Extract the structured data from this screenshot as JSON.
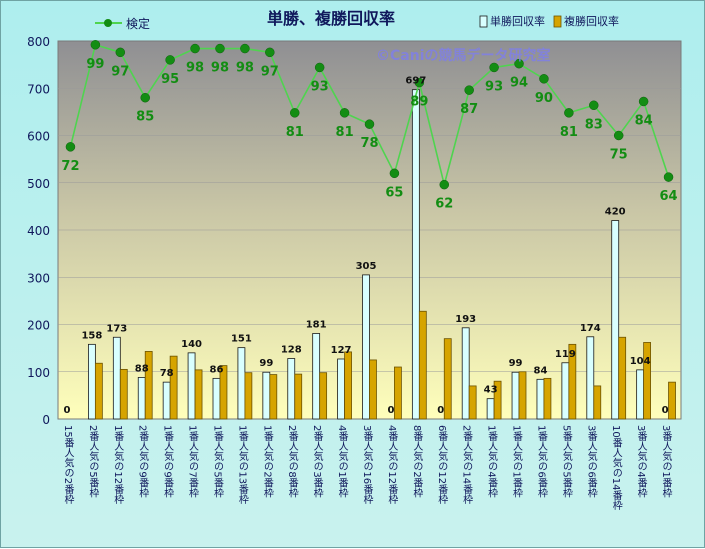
{
  "chart_data": {
    "type": "bar",
    "title": "単勝、複勝回収率",
    "watermark": "©Caniの競馬データ研究室",
    "legend": {
      "line_label": "検定",
      "bar1_label": "単勝回収率",
      "bar2_label": "複勝回収率"
    },
    "ylim": [
      0,
      800
    ],
    "yticks": [
      "0",
      "100",
      "200",
      "300",
      "400",
      "500",
      "600",
      "700",
      "800"
    ],
    "categories": [
      "15番人気の2番枠",
      "2番人気の5番枠",
      "1番人気の12番枠",
      "2番人気の9番枠",
      "1番人気の9番枠",
      "1番人気の7番枠",
      "1番人気の5番枠",
      "1番人気の13番枠",
      "1番人気の2番枠",
      "2番人気の8番枠",
      "2番人気の3番枠",
      "4番人気の1番枠",
      "3番人気の16番枠",
      "4番人気の12番枠",
      "8番人気の2番枠",
      "6番人気の12番枠",
      "2番人気の14番枠",
      "1番人気の4番枠",
      "1番人気の1番枠",
      "1番人気の6番枠",
      "5番人気の5番枠",
      "3番人気の6番枠",
      "10番人気の14番枠",
      "3番人気の4番枠",
      "3番人気の1番枠"
    ],
    "series": [
      {
        "name": "単勝回収率",
        "type": "bar",
        "values": [
          0,
          158,
          173,
          88,
          78,
          140,
          86,
          151,
          99,
          128,
          181,
          127,
          305,
          0,
          697,
          0,
          193,
          43,
          99,
          84,
          119,
          174,
          420,
          104,
          0
        ]
      },
      {
        "name": "複勝回収率",
        "type": "bar",
        "values": [
          0,
          118,
          105,
          143,
          133,
          104,
          113,
          98,
          94,
          95,
          98,
          142,
          125,
          110,
          228,
          170,
          70,
          80,
          100,
          86,
          158,
          70,
          173,
          162,
          78
        ]
      },
      {
        "name": "検定",
        "type": "line",
        "values": [
          72,
          99,
          97,
          85,
          95,
          98,
          98,
          98,
          97,
          81,
          93,
          81,
          78,
          65,
          89,
          62,
          87,
          93,
          94,
          90,
          81,
          83,
          75,
          84,
          64
        ]
      }
    ],
    "colors": {
      "bar1": "#d9ffff",
      "bar1_stroke": "#1a1a1a",
      "bar2": "#d6a400",
      "bar2_stroke": "#6b5200",
      "line": "#4fd44f",
      "marker": "#138d13",
      "line_label": "#138d13"
    },
    "grid": true
  }
}
